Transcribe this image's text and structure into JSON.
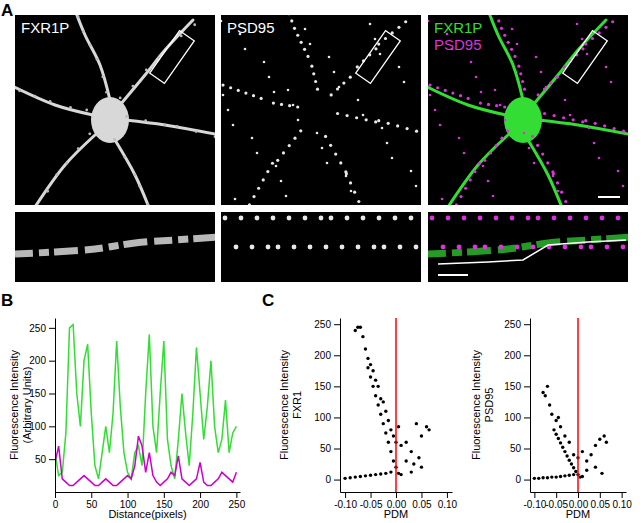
{
  "chart_data": [
    {
      "type": "image",
      "panel": "A",
      "channels": [
        {
          "label": "FXR1P",
          "color": "#ffffff"
        },
        {
          "label": "PSD95",
          "color": "#ffffff"
        }
      ],
      "merge": [
        {
          "label": "FXR1P",
          "color": "#33dd33"
        },
        {
          "label": "PSD95",
          "color": "#dd33dd"
        }
      ]
    },
    {
      "type": "line",
      "panel": "B",
      "xlabel": "Distance(pixels)",
      "ylabel": [
        "Fluorescence Intensity",
        "(Arbitrary Units)"
      ],
      "x": [
        0,
        5,
        10,
        15,
        20,
        25,
        30,
        35,
        40,
        45,
        50,
        55,
        60,
        65,
        70,
        75,
        80,
        85,
        90,
        95,
        100,
        105,
        110,
        115,
        120,
        125,
        130,
        135,
        140,
        145,
        150,
        155,
        160,
        165,
        170,
        175,
        180,
        185,
        190,
        195,
        200,
        205,
        210,
        215,
        220,
        225,
        230,
        235,
        240,
        245,
        250
      ],
      "series": [
        {
          "color": "#33dd33",
          "values": [
            60,
            25,
            30,
            90,
            250,
            255,
            150,
            100,
            200,
            225,
            120,
            40,
            20,
            60,
            100,
            60,
            120,
            230,
            130,
            60,
            30,
            20,
            60,
            70,
            40,
            150,
            240,
            100,
            60,
            150,
            230,
            80,
            40,
            20,
            80,
            150,
            90,
            40,
            120,
            220,
            150,
            80,
            130,
            200,
            100,
            60,
            80,
            140,
            60,
            90,
            100
          ]
        },
        {
          "color": "#cc00cc",
          "values": [
            45,
            70,
            20,
            15,
            10,
            10,
            15,
            20,
            25,
            20,
            15,
            10,
            10,
            15,
            20,
            15,
            10,
            10,
            15,
            20,
            25,
            20,
            40,
            85,
            70,
            30,
            60,
            25,
            15,
            10,
            15,
            20,
            30,
            25,
            55,
            20,
            15,
            10,
            15,
            20,
            45,
            15,
            10,
            10,
            15,
            20,
            30,
            25,
            20,
            15,
            30
          ]
        }
      ],
      "xlim": [
        0,
        255
      ],
      "ylim": [
        0,
        265
      ],
      "xticks": [
        0,
        50,
        100,
        150,
        200,
        250
      ],
      "yticks": [
        50,
        100,
        150,
        200,
        250
      ]
    },
    {
      "type": "scatter",
      "panel": "C",
      "color": "#000000",
      "xlabel": "PDM",
      "ylabel": [
        "Fluorescence Intensity",
        "FXR1"
      ],
      "x": [
        -0.055,
        -0.05,
        -0.045,
        -0.04,
        -0.035,
        -0.03,
        -0.025,
        -0.02,
        -0.015,
        -0.01,
        -0.005,
        0,
        0.005,
        -0.08,
        -0.075,
        -0.07,
        -0.065,
        -0.06,
        -0.055,
        -0.05,
        -0.045,
        -0.04,
        -0.035,
        -0.03,
        -0.025,
        -0.02,
        -0.015,
        -0.01,
        -0.005,
        0,
        0.005,
        0.01,
        0.02,
        0.03,
        0.04,
        0.05,
        0.06,
        0.065,
        -0.1,
        -0.09,
        -0.08,
        -0.07,
        -0.06,
        -0.05,
        -0.04,
        -0.03,
        -0.02,
        -0.01,
        0.01,
        0.02,
        0.035,
        0.045,
        0.03,
        0.05
      ],
      "y": [
        180,
        165,
        150,
        135,
        120,
        105,
        90,
        75,
        60,
        45,
        30,
        20,
        10,
        240,
        245,
        245,
        230,
        210,
        195,
        185,
        175,
        160,
        150,
        130,
        125,
        110,
        95,
        80,
        70,
        60,
        85,
        55,
        60,
        45,
        90,
        70,
        85,
        80,
        2,
        3,
        4,
        5,
        6,
        7,
        8,
        9,
        10,
        12,
        8,
        30,
        25,
        35,
        12,
        20
      ],
      "reference_line": {
        "x": 0,
        "color": "#ff0000"
      },
      "xlim": [
        -0.11,
        0.11
      ],
      "ylim": [
        -20,
        260
      ],
      "xticks": [
        {
          "value": -0.1,
          "label": "-0.10"
        },
        {
          "value": -0.05,
          "label": "-0.05"
        },
        {
          "value": 0,
          "label": "0.00"
        },
        {
          "value": 0.05,
          "label": "0.05"
        },
        {
          "value": 0.1,
          "label": "0.10"
        }
      ],
      "yticks": [
        0,
        50,
        100,
        150,
        200,
        250
      ]
    },
    {
      "type": "scatter",
      "color": "#000000",
      "xlabel": "PDM",
      "ylabel": [
        "Fluorescence Intensity",
        "PSD95"
      ],
      "x": [
        -0.055,
        -0.05,
        -0.045,
        -0.04,
        -0.035,
        -0.03,
        -0.025,
        -0.02,
        -0.015,
        -0.01,
        -0.005,
        0,
        0.005,
        -0.08,
        -0.075,
        -0.07,
        -0.065,
        -0.06,
        -0.05,
        -0.045,
        -0.04,
        -0.03,
        -0.02,
        -0.01,
        0,
        0.01,
        0.02,
        0.03,
        0.04,
        0.05,
        0.06,
        0.065,
        -0.1,
        -0.09,
        -0.08,
        -0.07,
        -0.06,
        -0.05,
        -0.04,
        -0.03,
        -0.02,
        -0.01,
        0.01,
        0.02,
        0.04,
        0.055
      ],
      "y": [
        80,
        73,
        66,
        59,
        52,
        45,
        38,
        31,
        25,
        19,
        13,
        8,
        4,
        140,
        135,
        150,
        120,
        105,
        95,
        100,
        85,
        70,
        60,
        40,
        35,
        45,
        30,
        40,
        55,
        65,
        70,
        60,
        2,
        2,
        3,
        3,
        4,
        4,
        5,
        6,
        7,
        8,
        5,
        15,
        20,
        10
      ],
      "reference_line": {
        "x": 0,
        "color": "#ff0000"
      },
      "xlim": [
        -0.11,
        0.11
      ],
      "ylim": [
        -20,
        260
      ],
      "xticks": [
        {
          "value": -0.1,
          "label": "-0.10"
        },
        {
          "value": -0.05,
          "label": "-0.05"
        },
        {
          "value": 0,
          "label": "0.00"
        },
        {
          "value": 0.05,
          "label": "0.05"
        },
        {
          "value": 0.1,
          "label": "0.10"
        }
      ],
      "yticks": [
        0,
        50,
        100,
        150,
        200,
        250
      ]
    }
  ]
}
